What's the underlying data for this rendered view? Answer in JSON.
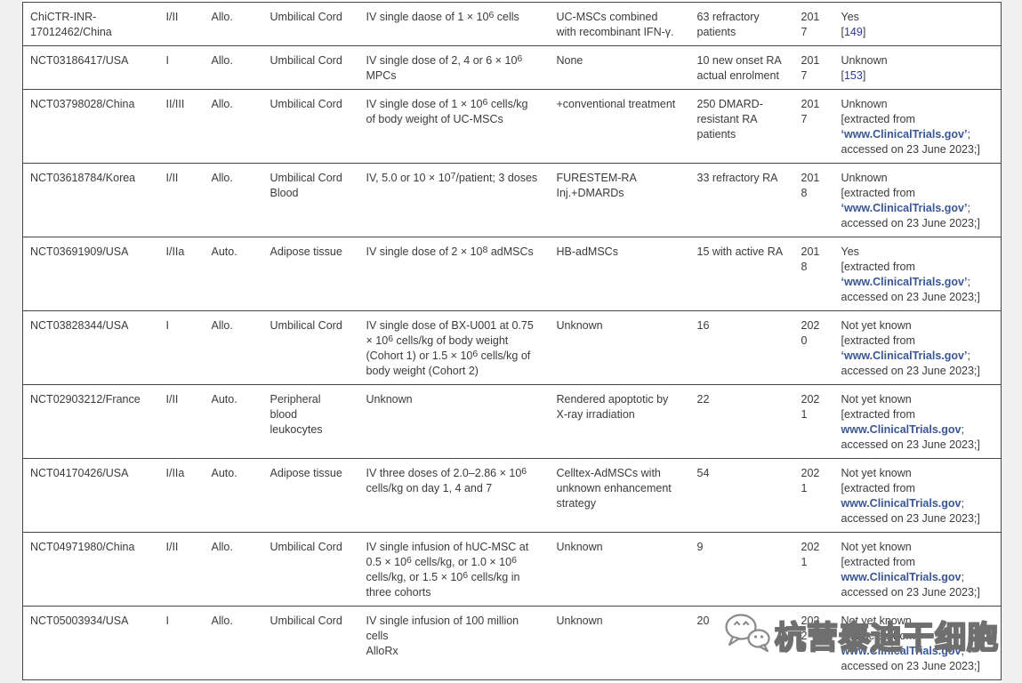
{
  "colors": {
    "text": "#3b3b3b",
    "row_border": "#454545",
    "bold_link": "#3a5795",
    "reference_link": "#2b3990",
    "page_gutter": "#f0f0f0",
    "page_background": "#ffffff",
    "watermark_outline": "#6f6f6f"
  },
  "table": {
    "column_keys": [
      "trial_id",
      "phase",
      "graft_type",
      "cell_source",
      "dose",
      "combination",
      "patients",
      "year",
      "status"
    ],
    "rows": [
      {
        "trial_id": "ChiCTR-INR-17012462/China",
        "phase": "I/II",
        "graft_type": "Allo.",
        "cell_source": "Umbilical Cord",
        "dose": [
          {
            "t": "IV single daose of 1 × 10"
          },
          {
            "t": "6",
            "s": "sup"
          },
          {
            "t": " cells"
          }
        ],
        "combination": "UC-MSCs combined with recombinant IFN-γ.",
        "patients": "63 refractory patients",
        "year": "2017",
        "status": [
          {
            "t": "Yes"
          },
          {
            "br": true
          },
          {
            "t": "["
          },
          {
            "t": "149",
            "s": "ref"
          },
          {
            "t": "]"
          }
        ]
      },
      {
        "trial_id": "NCT03186417/USA",
        "phase": "I",
        "graft_type": "Allo.",
        "cell_source": "Umbilical Cord",
        "dose": [
          {
            "t": "IV single dose of 2, 4 or 6 × 10"
          },
          {
            "t": "6",
            "s": "sup"
          },
          {
            "t": " MPCs"
          }
        ],
        "combination": "None",
        "patients": "10 new onset RA actual enrolment",
        "year": "2017",
        "status": [
          {
            "t": "Unknown"
          },
          {
            "br": true
          },
          {
            "t": "["
          },
          {
            "t": "153",
            "s": "ref"
          },
          {
            "t": "]"
          }
        ]
      },
      {
        "trial_id": "NCT03798028/China",
        "phase": "II/III",
        "graft_type": "Allo.",
        "cell_source": "Umbilical Cord",
        "dose": [
          {
            "t": "IV single dose of 1 × 10"
          },
          {
            "t": "6",
            "s": "sup"
          },
          {
            "t": " cells/kg of body weight of UC-MSCs"
          }
        ],
        "combination": "+conventional treatment",
        "patients": "250 DMARD-resistant RA patients",
        "year": "2017",
        "status": [
          {
            "t": "Unknown"
          },
          {
            "br": true
          },
          {
            "t": "[extracted from"
          },
          {
            "br": true
          },
          {
            "t": "‘www.ClinicalTrials.gov’",
            "s": "link"
          },
          {
            "t": ";"
          },
          {
            "br": true
          },
          {
            "t": "accessed on 23 June 2023;]"
          }
        ]
      },
      {
        "trial_id": "NCT03618784/Korea",
        "phase": "I/II",
        "graft_type": "Allo.",
        "cell_source": "Umbilical Cord Blood",
        "dose": [
          {
            "t": "IV, 5.0 or 10 × 10"
          },
          {
            "t": "7",
            "s": "sup"
          },
          {
            "t": "/patient; 3 doses"
          }
        ],
        "combination": "FURESTEM-RA Inj.+DMARDs",
        "patients": "33 refractory RA",
        "year": "2018",
        "status": [
          {
            "t": "Unknown"
          },
          {
            "br": true
          },
          {
            "t": "[extracted from"
          },
          {
            "br": true
          },
          {
            "t": "‘www.ClinicalTrials.gov’",
            "s": "link"
          },
          {
            "t": ";"
          },
          {
            "br": true
          },
          {
            "t": "accessed on 23 June 2023;]"
          }
        ]
      },
      {
        "trial_id": "NCT03691909/USA",
        "phase": "I/IIa",
        "graft_type": "Auto.",
        "cell_source": "Adipose tissue",
        "dose": [
          {
            "t": "IV single dose of 2 × 10"
          },
          {
            "t": "8",
            "s": "sup"
          },
          {
            "t": " adMSCs"
          }
        ],
        "combination": "HB-adMSCs",
        "patients": "15 with active RA",
        "year": "2018",
        "status": [
          {
            "t": "Yes"
          },
          {
            "br": true
          },
          {
            "t": "[extracted from"
          },
          {
            "br": true
          },
          {
            "t": "‘www.ClinicalTrials.gov’",
            "s": "link"
          },
          {
            "t": ";"
          },
          {
            "br": true
          },
          {
            "t": "accessed on 23 June 2023;]"
          }
        ]
      },
      {
        "trial_id": "NCT03828344/USA",
        "phase": "I",
        "graft_type": "Allo.",
        "cell_source": "Umbilical Cord",
        "dose": [
          {
            "t": "IV single dose of BX-U001 at 0.75 × 10"
          },
          {
            "t": "6",
            "s": "sup"
          },
          {
            "t": " cells/kg of body weight (Cohort 1) or 1.5 × 10"
          },
          {
            "t": "6",
            "s": "sup"
          },
          {
            "t": " cells/kg of body weight (Cohort 2)"
          }
        ],
        "combination": "Unknown",
        "patients": "16",
        "year": "2020",
        "status": [
          {
            "t": "Not yet known"
          },
          {
            "br": true
          },
          {
            "t": "[extracted from"
          },
          {
            "br": true
          },
          {
            "t": "‘www.ClinicalTrials.gov’",
            "s": "link"
          },
          {
            "t": ";"
          },
          {
            "br": true
          },
          {
            "t": "accessed on 23 June 2023;]"
          }
        ]
      },
      {
        "trial_id": "NCT02903212/France",
        "phase": "I/II",
        "graft_type": "Auto.",
        "cell_source": "Peripheral blood leukocytes",
        "dose": [
          {
            "t": "Unknown"
          }
        ],
        "combination": "Rendered apoptotic by X-ray irradiation",
        "patients": "22",
        "year": "2021",
        "status": [
          {
            "t": "Not yet known"
          },
          {
            "br": true
          },
          {
            "t": "[extracted from"
          },
          {
            "br": true
          },
          {
            "t": "www.ClinicalTrials.gov",
            "s": "link"
          },
          {
            "t": ";"
          },
          {
            "br": true
          },
          {
            "t": "accessed on 23 June 2023;]"
          }
        ]
      },
      {
        "trial_id": "NCT04170426/USA",
        "phase": "I/IIa",
        "graft_type": "Auto.",
        "cell_source": "Adipose tissue",
        "dose": [
          {
            "t": "IV three doses of 2.0–2.86 × 10"
          },
          {
            "t": "6",
            "s": "sup"
          },
          {
            "t": " cells/kg on day 1, 4 and 7"
          }
        ],
        "combination": "Celltex-AdMSCs with unknown enhancement strategy",
        "patients": "54",
        "year": "2021",
        "status": [
          {
            "t": "Not yet known"
          },
          {
            "br": true
          },
          {
            "t": "[extracted from"
          },
          {
            "br": true
          },
          {
            "t": "www.ClinicalTrials.gov",
            "s": "link"
          },
          {
            "t": ";"
          },
          {
            "br": true
          },
          {
            "t": "accessed on 23 June 2023;]"
          }
        ]
      },
      {
        "trial_id": "NCT04971980/China",
        "phase": "I/II",
        "graft_type": "Allo.",
        "cell_source": "Umbilical Cord",
        "dose": [
          {
            "t": "IV single infusion of hUC-MSC at 0.5 × 10"
          },
          {
            "t": "6",
            "s": "sup"
          },
          {
            "t": " cells/kg, or 1.0 × 10"
          },
          {
            "t": "6",
            "s": "sup"
          },
          {
            "t": " cells/kg, or 1.5 × 10"
          },
          {
            "t": "6",
            "s": "sup"
          },
          {
            "t": " cells/kg in three cohorts"
          }
        ],
        "combination": "Unknown",
        "patients": "9",
        "year": "2021",
        "status": [
          {
            "t": "Not yet known"
          },
          {
            "br": true
          },
          {
            "t": "[extracted from"
          },
          {
            "br": true
          },
          {
            "t": "www.ClinicalTrials.gov",
            "s": "link"
          },
          {
            "t": ";"
          },
          {
            "br": true
          },
          {
            "t": "accessed on 23 June 2023;]"
          }
        ]
      },
      {
        "trial_id": "NCT05003934/USA",
        "phase": "I",
        "graft_type": "Allo.",
        "cell_source": "Umbilical Cord",
        "dose": [
          {
            "t": "IV single infusion of 100 million cells"
          },
          {
            "br": true
          },
          {
            "t": "AlloRx"
          }
        ],
        "combination": "Unknown",
        "patients": "20",
        "year": "2022",
        "status": [
          {
            "t": "Not yet known"
          },
          {
            "br": true
          },
          {
            "t": "[extracted from"
          },
          {
            "br": true
          },
          {
            "t": "www.ClinicalTrials.gov",
            "s": "link"
          },
          {
            "t": ";"
          },
          {
            "br": true
          },
          {
            "t": "accessed on 23 June 2023;]"
          }
        ]
      }
    ]
  },
  "watermark": {
    "icon": "wechat-icon",
    "text": "杭营泰迪干细胞"
  }
}
